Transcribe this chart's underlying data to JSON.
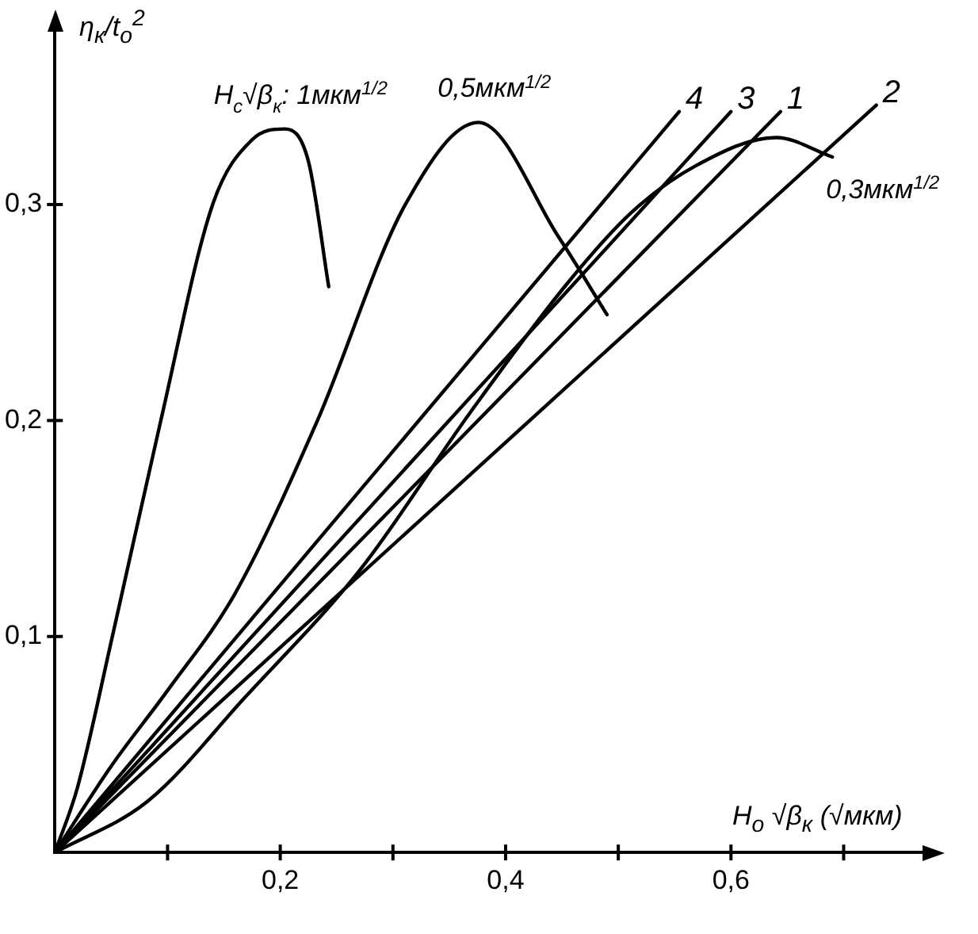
{
  "chart_data": {
    "type": "line",
    "ylabel": "η$_{к}$/t$_{о}$$^{2}$",
    "xlabel": "H$_{о}$ √β$_{к}$ (√мкм)",
    "xlim": [
      0,
      0.77
    ],
    "ylim": [
      0,
      0.38
    ],
    "xticks": [
      {
        "value": 0.1,
        "label": null
      },
      {
        "value": 0.2,
        "label": "0,2"
      },
      {
        "value": 0.3,
        "label": null
      },
      {
        "value": 0.4,
        "label": "0,4"
      },
      {
        "value": 0.5,
        "label": null
      },
      {
        "value": 0.6,
        "label": "0,6"
      },
      {
        "value": 0.7,
        "label": null
      }
    ],
    "yticks": [
      {
        "value": 0.1,
        "label": "0,1"
      },
      {
        "value": 0.2,
        "label": "0,2"
      },
      {
        "value": 0.3,
        "label": "0,3"
      }
    ],
    "grid": false,
    "legend": false,
    "marker": "none",
    "series": [
      {
        "name": "H$_{с}$√β$_{к}$: 1мкм$^{1/2}$",
        "color": "#000000",
        "x": [
          0,
          0.02,
          0.051,
          0.094,
          0.14,
          0.175,
          0.204,
          0.225,
          0.243
        ],
        "values": [
          0,
          0.03,
          0.1,
          0.2,
          0.3,
          0.33,
          0.335,
          0.32,
          0.262
        ]
      },
      {
        "name": "0,5мкм$^{1/2}$",
        "color": "#000000",
        "x": [
          0,
          0.05,
          0.1,
          0.16,
          0.233,
          0.311,
          0.376,
          0.447,
          0.49
        ],
        "values": [
          0,
          0.04,
          0.075,
          0.12,
          0.2,
          0.3,
          0.338,
          0.285,
          0.249
        ]
      },
      {
        "name": "0,3мкм$^{1/2}$",
        "color": "#000000",
        "x": [
          0,
          0.083,
          0.169,
          0.271,
          0.369,
          0.454,
          0.511,
          0.569,
          0.64,
          0.69
        ],
        "values": [
          0,
          0.024,
          0.072,
          0.131,
          0.204,
          0.263,
          0.296,
          0.318,
          0.331,
          0.322
        ]
      },
      {
        "name": "4",
        "color": "#000000",
        "x": [
          0,
          0.554
        ],
        "values": [
          0,
          0.343
        ]
      },
      {
        "name": "3",
        "color": "#000000",
        "x": [
          0,
          0.6
        ],
        "values": [
          0,
          0.343
        ]
      },
      {
        "name": "1",
        "color": "#000000",
        "x": [
          0,
          0.644
        ],
        "values": [
          0,
          0.343
        ]
      },
      {
        "name": "2",
        "color": "#000000",
        "x": [
          0,
          0.729
        ],
        "values": [
          0,
          0.346
        ]
      }
    ]
  }
}
